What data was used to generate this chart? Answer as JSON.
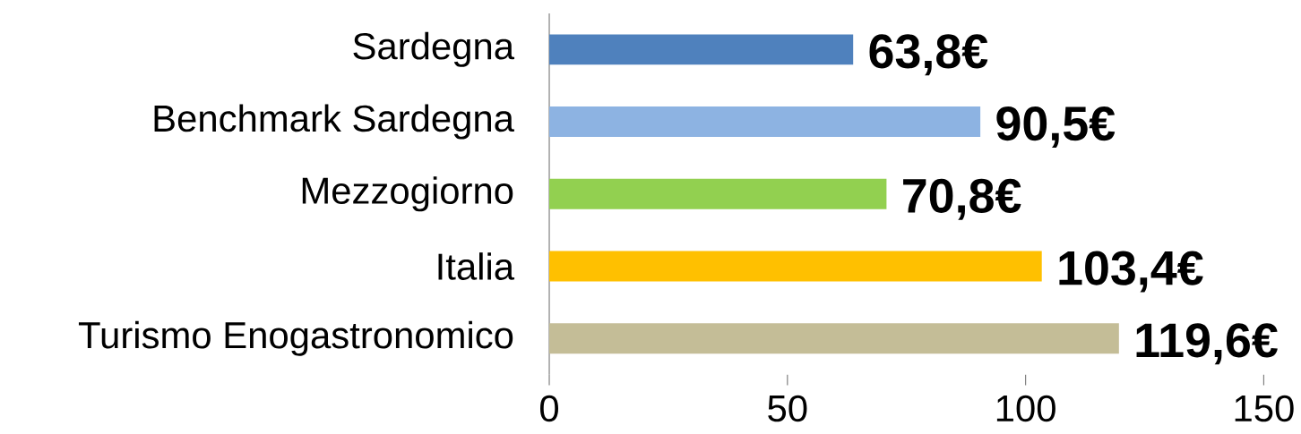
{
  "chart_data": {
    "type": "bar",
    "orientation": "horizontal",
    "categories": [
      "Sardegna",
      "Benchmark Sardegna",
      "Mezzogiorno",
      "Italia",
      "Turismo Enogastronomico"
    ],
    "values": [
      63.8,
      90.5,
      70.8,
      103.4,
      119.6
    ],
    "colors": [
      "#4f81bd",
      "#8db3e2",
      "#92d050",
      "#ffc000",
      "#c4bd97"
    ],
    "value_labels": [
      "63,8€",
      "90,5€",
      "70,8€",
      "103,4€",
      "119,6€"
    ],
    "xlim": [
      0,
      150
    ],
    "xticks": [
      0,
      50,
      100,
      150
    ]
  }
}
